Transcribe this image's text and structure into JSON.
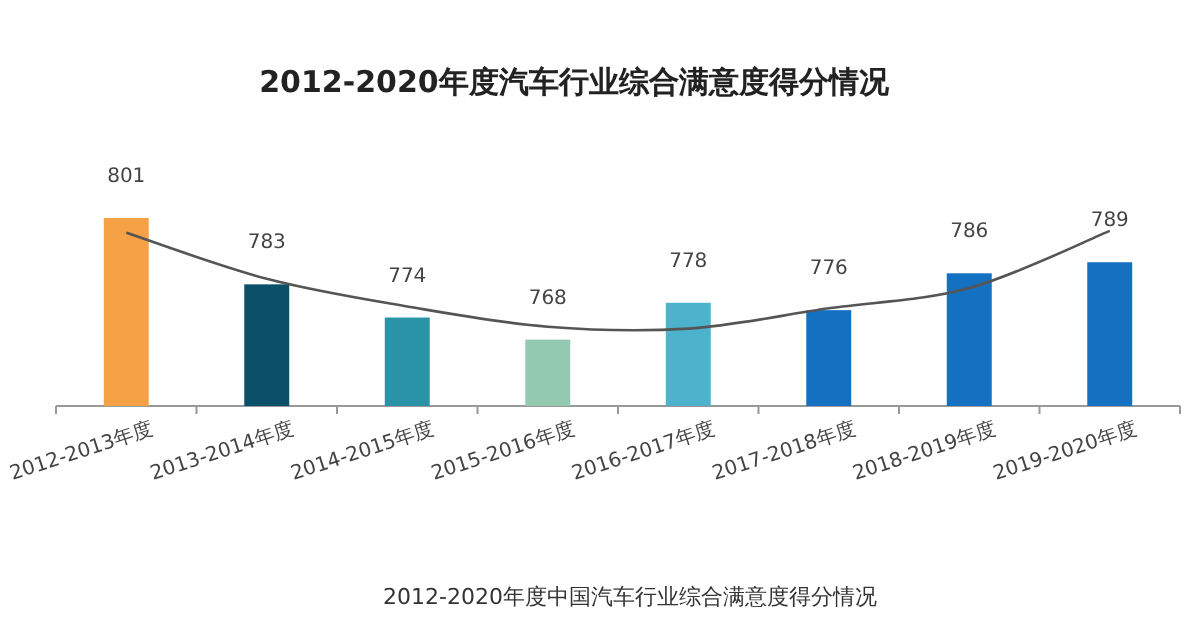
{
  "chart_data": {
    "type": "bar",
    "title": "2012-2020年度汽车行业综合满意度得分情况",
    "categories": [
      "2012-2013年度",
      "2013-2014年度",
      "2014-2015年度",
      "2015-2016年度",
      "2016-2017年度",
      "2017-2018年度",
      "2018-2019年度",
      "2019-2020年度"
    ],
    "ylim": [
      750,
      801
    ],
    "series": [
      {
        "colors": [
          "#f5a145",
          "#0b5068",
          "#2a93a8",
          "#93c9b0",
          "#4db3cc",
          "#1470c0",
          "#1470c0",
          "#1470c0"
        ],
        "values": [
          801,
          783,
          774,
          768,
          778,
          776,
          786,
          789
        ],
        "value_labels": [
          "801",
          "783",
          "774",
          "768",
          "778",
          "776",
          "786",
          "789"
        ]
      },
      {
        "type": "line",
        "color": "#555555",
        "values": [
          797,
          784.5,
          777,
          771.5,
          771,
          776.5,
          782,
          797.5
        ]
      }
    ],
    "annotations": [
      "2012-2020年度中国汽车行业综合满意度得分情况"
    ]
  }
}
